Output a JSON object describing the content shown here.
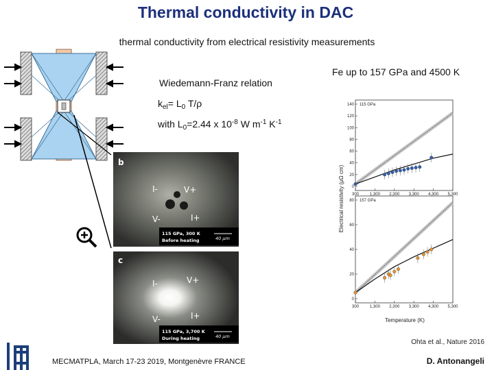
{
  "header": {
    "title": "Thermal conductivity in DAC",
    "subtitle": "thermal conductivity from electrical resistivity measurements"
  },
  "relation": {
    "heading": "Wiedemann-Franz relation",
    "formula": [
      "k",
      "el",
      "= L",
      "0",
      " T/ρ"
    ],
    "constant": [
      "with L",
      "0",
      "=2.44 x 10",
      "-8",
      " W m",
      "-1",
      " K",
      "-1"
    ]
  },
  "micrographs": [
    {
      "panel": "b",
      "labels": [
        "I-",
        "V+",
        "V-",
        "I+"
      ],
      "caption": [
        "115 GPa, 300 K",
        "Before heating"
      ],
      "scale": "40 μm"
    },
    {
      "panel": "c",
      "labels": [
        "I-",
        "V+",
        "V-",
        "I+"
      ],
      "caption": [
        "115 GPa, 3,700 K",
        "During heating"
      ],
      "scale": "40 μm"
    }
  ],
  "figure": {
    "heading": "Fe up to 157 GPa and 4500 K",
    "y_label": "Electrical resistivity (μΩ cm)",
    "x_label": "Temperature (K)",
    "xlim": [
      300,
      5300
    ],
    "xticks": [
      300,
      {
        "value": 1300,
        "label": "1,300"
      },
      {
        "value": 2300,
        "label": "2,300"
      },
      {
        "value": 3300,
        "label": "3,300"
      },
      {
        "value": 4300,
        "label": "4,300"
      },
      {
        "value": 5300,
        "label": "5,300"
      }
    ],
    "panels": [
      {
        "label": "115 GPa",
        "ylim": [
          0,
          140
        ],
        "yticks": [
          0,
          20,
          40,
          60,
          80,
          100,
          120,
          140
        ],
        "color": "#2f5fb3",
        "points": {
          "x": [
            300,
            1800,
            2000,
            2200,
            2400,
            2600,
            2800,
            3000,
            3200,
            3400,
            3600,
            4200
          ],
          "y": [
            4,
            20,
            22,
            24,
            26,
            27,
            28,
            30,
            31,
            32,
            33,
            49
          ]
        },
        "linear": {
          "x": [
            300,
            5300
          ],
          "y": [
            4,
            125
          ]
        },
        "fit": {
          "x": [
            300,
            1300,
            2300,
            3300,
            4300,
            5300
          ],
          "y": [
            4,
            16,
            28,
            38,
            48,
            55
          ]
        }
      },
      {
        "label": "157 GPa",
        "ylim": [
          0,
          80
        ],
        "yticks": [
          0,
          20,
          40,
          60,
          80
        ],
        "color": "#e8952f",
        "points": {
          "x": [
            300,
            1800,
            2000,
            2100,
            2300,
            2500,
            3500,
            3800,
            4000,
            4200
          ],
          "y": [
            5,
            17,
            20,
            19,
            22,
            24,
            33,
            36,
            38,
            40
          ]
        },
        "linear": {
          "x": [
            300,
            5300
          ],
          "y": [
            5,
            78
          ]
        },
        "fit": {
          "x": [
            300,
            1300,
            2300,
            3300,
            4300,
            5300
          ],
          "y": [
            5,
            16,
            26,
            34,
            41,
            48
          ]
        }
      }
    ]
  },
  "citation": "Ohta et al., Nature 2016",
  "footer": {
    "event": "MECMATPLA, March 17-23 2019, Montgenèvre FRANCE",
    "author": "D. Antonangeli"
  }
}
